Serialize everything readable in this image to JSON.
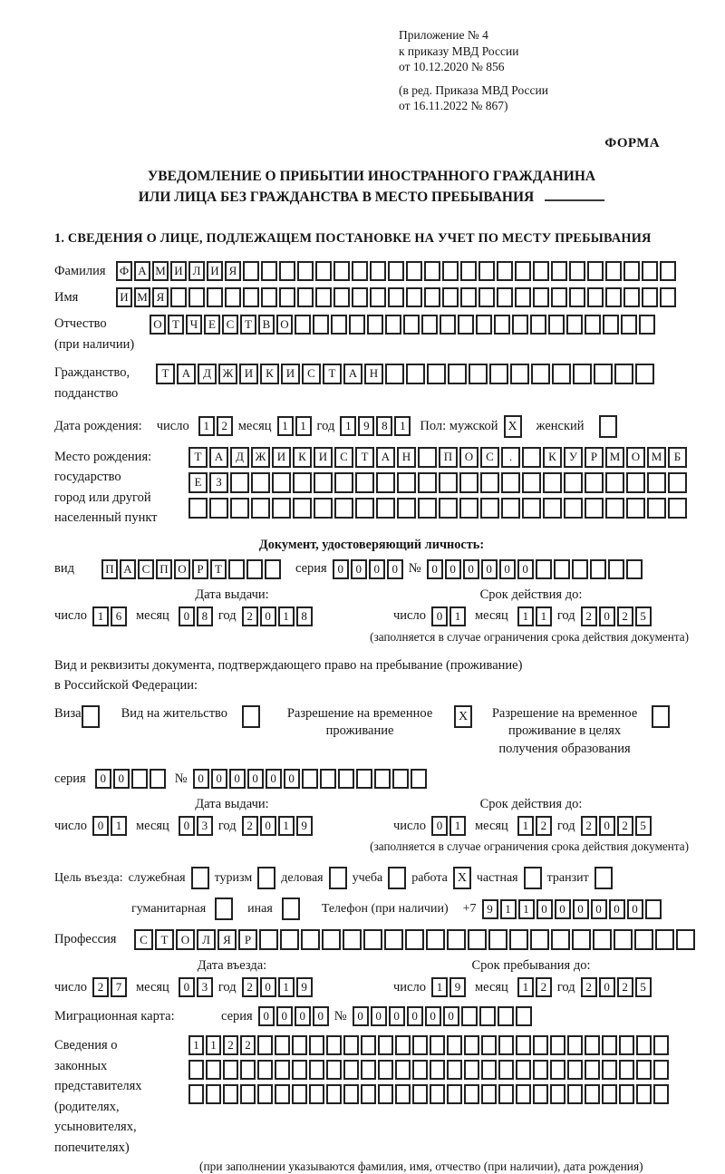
{
  "header": {
    "appendix": [
      "Приложение № 4",
      "к приказу МВД России",
      "от 10.12.2020 № 856"
    ],
    "revision": [
      "(в ред. Приказа МВД России",
      "от 16.11.2022 № 867)"
    ],
    "form_label": "ФОРМА"
  },
  "title": {
    "line1": "УВЕДОМЛЕНИЕ О ПРИБЫТИИ ИНОСТРАННОГО ГРАЖДАНИНА",
    "line2": "ИЛИ ЛИЦА БЕЗ ГРАЖДАНСТВА В МЕСТО ПРЕБЫВАНИЯ"
  },
  "section1": {
    "heading": "1. СВЕДЕНИЯ О ЛИЦЕ, ПОДЛЕЖАЩЕМ ПОСТАНОВКЕ НА УЧЕТ ПО МЕСТУ ПРЕБЫВАНИЯ",
    "surname": {
      "label": "Фамилия",
      "cells": {
        "t": "ФАМИЛИЯ",
        "n": 31
      }
    },
    "name": {
      "label": "Имя",
      "cells": {
        "t": "ИМЯ",
        "n": 31
      }
    },
    "patronymic": {
      "label": "Отчество",
      "label2": "(при наличии)",
      "cells": {
        "t": "ОТЧЕСТВО",
        "n": 28
      }
    },
    "citizenship": {
      "label": "Гражданство,",
      "label2": "подданство",
      "cells": {
        "t": "ТАДЖИКИСТАН",
        "n": 24
      }
    },
    "birth_date": {
      "label": "Дата рождения:",
      "day_label": "число",
      "day": {
        "t": "12",
        "n": 2
      },
      "month_label": "месяц",
      "month": {
        "t": "11",
        "n": 2
      },
      "year_label": "год",
      "year": {
        "t": "1981",
        "n": 4
      },
      "sex_label": "Пол: мужской",
      "male_value": "X",
      "female_label": "женский",
      "female_value": ""
    },
    "birth_place": {
      "labels": [
        "Место рождения:",
        "государство",
        "город или другой",
        "населенный пункт"
      ],
      "row1": {
        "t": "ТАДЖИКИСТАН ПОС. КУРМОМБ",
        "n": 24
      },
      "row2": {
        "t": "ЕЗ",
        "n": 24
      },
      "row3": {
        "t": "",
        "n": 24
      }
    },
    "identity_doc": {
      "heading": "Документ, удостоверяющий личность:",
      "type_label": "вид",
      "type": {
        "t": "ПАСПОРТ",
        "n": 10
      },
      "series_label": "серия",
      "series": {
        "t": "0000",
        "n": 4
      },
      "number_label": "№",
      "number": {
        "t": "000000",
        "n": 12
      },
      "issue_heading": "Дата выдачи:",
      "issue": {
        "day": {
          "t": "16",
          "n": 2
        },
        "month": {
          "t": "08",
          "n": 2
        },
        "year": {
          "t": "2018",
          "n": 4
        }
      },
      "valid_heading": "Срок действия до:",
      "valid": {
        "day": {
          "t": "01",
          "n": 2
        },
        "month": {
          "t": "11",
          "n": 2
        },
        "year": {
          "t": "2025",
          "n": 4
        }
      },
      "day_label": "число",
      "month_label": "месяц",
      "year_label": "год",
      "note": "(заполняется в случае ограничения срока действия документа)"
    },
    "residence_doc": {
      "intro1": "Вид и реквизиты документа, подтверждающего право на пребывание (проживание)",
      "intro2": "в Российской Федерации:",
      "options": [
        {
          "label": "Виза",
          "value": ""
        },
        {
          "label": "Вид на жительство",
          "value": ""
        },
        {
          "label": "Разрешение на временное проживание",
          "value": "X"
        },
        {
          "label": "Разрешение на временное проживание в целях получения образования",
          "value": ""
        }
      ],
      "series_label": "серия",
      "series": {
        "t": "00",
        "n": 4
      },
      "number_label": "№",
      "number": {
        "t": "000000",
        "n": 13
      },
      "issue_heading": "Дата выдачи:",
      "issue": {
        "day": {
          "t": "01",
          "n": 2
        },
        "month": {
          "t": "03",
          "n": 2
        },
        "year": {
          "t": "2019",
          "n": 4
        }
      },
      "valid_heading": "Срок действия до:",
      "valid": {
        "day": {
          "t": "01",
          "n": 2
        },
        "month": {
          "t": "12",
          "n": 2
        },
        "year": {
          "t": "2025",
          "n": 4
        }
      },
      "day_label": "число",
      "month_label": "месяц",
      "year_label": "год",
      "note": "(заполняется в случае ограничения срока действия документа)"
    },
    "visit_purpose": {
      "label": "Цель въезда:",
      "row1": [
        {
          "label": "служебная",
          "value": ""
        },
        {
          "label": "туризм",
          "value": ""
        },
        {
          "label": "деловая",
          "value": ""
        },
        {
          "label": "учеба",
          "value": ""
        },
        {
          "label": "работа",
          "value": "X"
        },
        {
          "label": "частная",
          "value": ""
        },
        {
          "label": "транзит",
          "value": ""
        }
      ],
      "row2": [
        {
          "label": "гуманитарная",
          "value": ""
        },
        {
          "label": "иная",
          "value": ""
        }
      ]
    },
    "phone": {
      "label": "Телефон (при наличии)",
      "prefix": "+7",
      "digits": {
        "t": "911000000",
        "n": 10
      }
    },
    "profession": {
      "label": "Профессия",
      "cells": {
        "t": "СТОЛЯР",
        "n": 27
      }
    },
    "entry": {
      "issue_heading": "Дата въезда:",
      "issue": {
        "day": {
          "t": "27",
          "n": 2
        },
        "month": {
          "t": "03",
          "n": 2
        },
        "year": {
          "t": "2019",
          "n": 4
        }
      },
      "valid_heading": "Срок пребывания до:",
      "valid": {
        "day": {
          "t": "19",
          "n": 2
        },
        "month": {
          "t": "12",
          "n": 2
        },
        "year": {
          "t": "2025",
          "n": 4
        }
      },
      "day_label": "число",
      "month_label": "месяц",
      "year_label": "год"
    },
    "migration_card": {
      "label": "Миграционная карта:",
      "series_label": "серия",
      "series": {
        "t": "0000",
        "n": 4
      },
      "number_label": "№",
      "number": {
        "t": "000000",
        "n": 10
      }
    },
    "representatives": {
      "labels": [
        "Сведения о",
        "законных",
        "представителях",
        "(родителях,",
        "усыновителях,",
        "попечителях)"
      ],
      "row1": {
        "t": "1122",
        "n": 28
      },
      "row2": {
        "t": "",
        "n": 28
      },
      "row3": {
        "t": "",
        "n": 28
      },
      "note": "(при заполнении указываются фамилия, имя, отчество (при наличии), дата рождения)"
    }
  }
}
